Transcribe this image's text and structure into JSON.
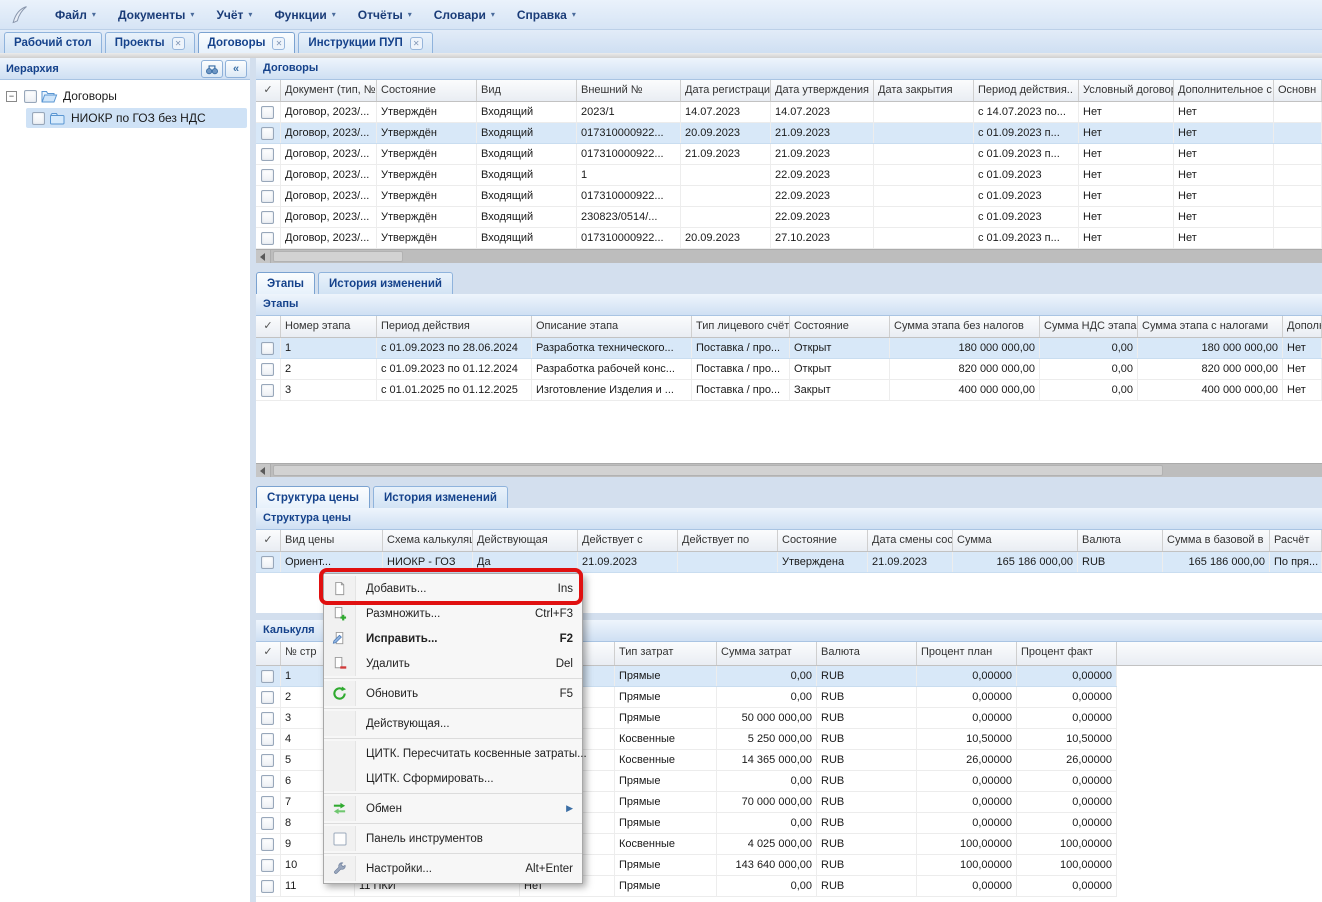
{
  "glyphs": {
    "dropdown": "▾",
    "close": "✕",
    "check": "✓",
    "collapse": "«",
    "expander_open": "−",
    "scroll_left": "◄",
    "submenu_arrow": "▶"
  },
  "menu_bar": {
    "items": [
      "Файл",
      "Документы",
      "Учёт",
      "Функции",
      "Отчёты",
      "Словари",
      "Справка"
    ]
  },
  "tab_bar": {
    "tabs": [
      {
        "label": "Рабочий стол",
        "closable": false,
        "active": false
      },
      {
        "label": "Проекты",
        "closable": true,
        "active": false
      },
      {
        "label": "Договоры",
        "closable": true,
        "active": true
      },
      {
        "label": "Инструкции ПУП",
        "closable": true,
        "active": false
      }
    ]
  },
  "sidebar": {
    "title": "Иерархия",
    "tree": {
      "root": "Договоры",
      "child": "НИОКР по ГОЗ без НДС"
    }
  },
  "contracts": {
    "title": "Договоры",
    "columns": [
      "✓",
      "Документ (тип, №",
      "Состояние",
      "Вид",
      "Внешний №",
      "Дата регистрации.",
      "Дата утверждения",
      "Дата закрытия",
      "Период действия..",
      "Условный договор",
      "Дополнительное с",
      "Основн"
    ],
    "rows": [
      [
        "Договор, 2023/...",
        "Утверждён",
        "Входящий",
        "2023/1",
        "14.07.2023",
        "14.07.2023",
        "",
        "с 14.07.2023 по...",
        "Нет",
        "Нет",
        ""
      ],
      [
        "Договор, 2023/...",
        "Утверждён",
        "Входящий",
        "017310000922...",
        "20.09.2023",
        "21.09.2023",
        "",
        "с 01.09.2023 п...",
        "Нет",
        "Нет",
        ""
      ],
      [
        "Договор, 2023/...",
        "Утверждён",
        "Входящий",
        "017310000922...",
        "21.09.2023",
        "21.09.2023",
        "",
        "с 01.09.2023 п...",
        "Нет",
        "Нет",
        ""
      ],
      [
        "Договор, 2023/...",
        "Утверждён",
        "Входящий",
        "1",
        "",
        "22.09.2023",
        "",
        "с 01.09.2023",
        "Нет",
        "Нет",
        ""
      ],
      [
        "Договор, 2023/...",
        "Утверждён",
        "Входящий",
        "017310000922...",
        "",
        "22.09.2023",
        "",
        "с 01.09.2023",
        "Нет",
        "Нет",
        ""
      ],
      [
        "Договор, 2023/...",
        "Утверждён",
        "Входящий",
        "230823/0514/...",
        "",
        "22.09.2023",
        "",
        "с 01.09.2023",
        "Нет",
        "Нет",
        ""
      ],
      [
        "Договор, 2023/...",
        "Утверждён",
        "Входящий",
        "017310000922...",
        "20.09.2023",
        "27.10.2023",
        "",
        "с 01.09.2023 п...",
        "Нет",
        "Нет",
        ""
      ]
    ],
    "selected_row": 1
  },
  "stages": {
    "tabs": [
      {
        "label": "Этапы",
        "active": true
      },
      {
        "label": "История изменений",
        "active": false
      }
    ],
    "title": "Этапы",
    "columns": [
      "✓",
      "Номер этапа",
      "Период действия",
      "Описание этапа",
      "Тип лицевого счёт",
      "Состояние",
      "Сумма этапа без налогов",
      "Сумма НДС этапа",
      "Сумма этапа с налогами",
      "Дополн"
    ],
    "rows": [
      [
        "1",
        "с 01.09.2023 по 28.06.2024",
        "Разработка технического...",
        "Поставка / про...",
        "Открыт",
        "180 000 000,00",
        "0,00",
        "180 000 000,00",
        "Нет"
      ],
      [
        "2",
        "с 01.09.2023 по 01.12.2024",
        "Разработка рабочей конс...",
        "Поставка / про...",
        "Открыт",
        "820 000 000,00",
        "0,00",
        "820 000 000,00",
        "Нет"
      ],
      [
        "3",
        "с 01.01.2025 по 01.12.2025",
        "Изготовление Изделия и ...",
        "Поставка / про...",
        "Закрыт",
        "400 000 000,00",
        "0,00",
        "400 000 000,00",
        "Нет"
      ]
    ],
    "selected_row": 0
  },
  "price_structure": {
    "tabs": [
      {
        "label": "Структура цены",
        "active": true
      },
      {
        "label": "История изменений",
        "active": false
      }
    ],
    "title": "Структура цены",
    "columns": [
      "✓",
      "Вид цены",
      "Схема калькуляци",
      "Действующая",
      "Действует с",
      "Действует по",
      "Состояние",
      "Дата смены состоя",
      "Сумма",
      "Валюта",
      "Сумма в базовой в",
      "Расчёт"
    ],
    "rows": [
      [
        "Ориент...",
        "НИОКР - ГОЗ",
        "Да",
        "21.09.2023",
        "",
        "Утверждена",
        "21.09.2023",
        "165 186 000,00",
        "RUB",
        "165 186 000,00",
        "По пря..."
      ]
    ],
    "selected_row": 0
  },
  "calculation": {
    "title": "Калькуля",
    "columns": [
      "✓",
      "№ стр",
      "",
      "",
      "Тип затрат",
      "Сумма затрат",
      "Валюта",
      "Процент план",
      "Процент факт"
    ],
    "rows": [
      [
        "1",
        "",
        "",
        "Прямые",
        "0,00",
        "RUB",
        "0,00000",
        "0,00000"
      ],
      [
        "2",
        "",
        "",
        "Прямые",
        "0,00",
        "RUB",
        "0,00000",
        "0,00000"
      ],
      [
        "3",
        "",
        "",
        "Прямые",
        "50 000 000,00",
        "RUB",
        "0,00000",
        "0,00000"
      ],
      [
        "4",
        "",
        "",
        "Косвенные",
        "5 250 000,00",
        "RUB",
        "10,50000",
        "10,50000"
      ],
      [
        "5",
        "",
        "",
        "Косвенные",
        "14 365 000,00",
        "RUB",
        "26,00000",
        "26,00000"
      ],
      [
        "6",
        "",
        "",
        "Прямые",
        "0,00",
        "RUB",
        "0,00000",
        "0,00000"
      ],
      [
        "7",
        "",
        "",
        "Прямые",
        "70 000 000,00",
        "RUB",
        "0,00000",
        "0,00000"
      ],
      [
        "8",
        "",
        "",
        "Прямые",
        "0,00",
        "RUB",
        "0,00000",
        "0,00000"
      ],
      [
        "9",
        "",
        "",
        "Косвенные",
        "4 025 000,00",
        "RUB",
        "100,00000",
        "100,00000"
      ],
      [
        "10",
        "",
        "",
        "Прямые",
        "143 640 000,00",
        "RUB",
        "100,00000",
        "100,00000"
      ],
      [
        "11",
        "11 ПКИ",
        "Нет",
        "Прямые",
        "0,00",
        "RUB",
        "0,00000",
        "0,00000"
      ]
    ],
    "selected_row": 0
  },
  "context_menu": {
    "items": [
      {
        "label": "Добавить...",
        "shortcut": "Ins",
        "icon": "page-new-icon",
        "highlighted": true
      },
      {
        "label": "Размножить...",
        "shortcut": "Ctrl+F3",
        "icon": "page-plus-icon"
      },
      {
        "label": "Исправить...",
        "shortcut": "F2",
        "icon": "page-edit-icon",
        "bold": true
      },
      {
        "label": "Удалить",
        "shortcut": "Del",
        "icon": "page-minus-icon"
      },
      {
        "separator": true
      },
      {
        "label": "Обновить",
        "shortcut": "F5",
        "icon": "refresh-icon"
      },
      {
        "separator": true
      },
      {
        "label": "Действующая..."
      },
      {
        "separator": true
      },
      {
        "label": "ЦИТК. Пересчитать косвенные затраты..."
      },
      {
        "label": "ЦИТК. Сформировать..."
      },
      {
        "separator": true
      },
      {
        "label": "Обмен",
        "icon": "exchange-icon",
        "submenu": true
      },
      {
        "separator": true
      },
      {
        "label": "Панель инструментов",
        "icon": "checkbox-icon"
      },
      {
        "separator": true
      },
      {
        "label": "Настройки...",
        "shortcut": "Alt+Enter",
        "icon": "wrench-icon"
      }
    ]
  },
  "colors": {
    "accent_navy": "#15428b",
    "selection_blue": "#d8e8f8",
    "annotation_red": "#e01010"
  }
}
